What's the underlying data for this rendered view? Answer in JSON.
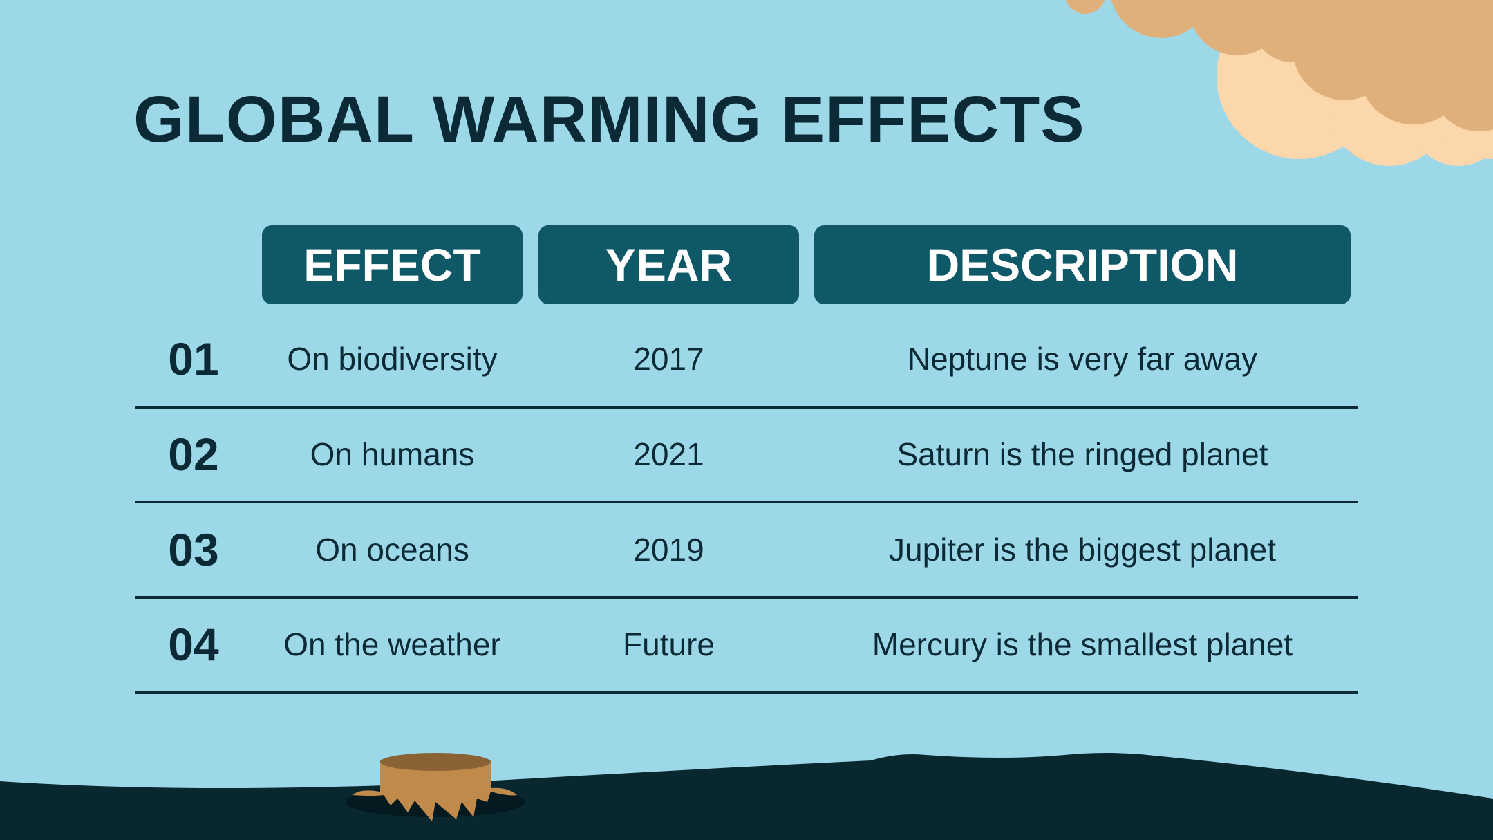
{
  "title": "GLOBAL WARMING EFFECTS",
  "headers": {
    "effect": "EFFECT",
    "year": "YEAR",
    "description": "DESCRIPTION"
  },
  "rows": [
    {
      "num": "01",
      "effect": "On biodiversity",
      "year": "2017",
      "description": "Neptune is very far away"
    },
    {
      "num": "02",
      "effect": "On humans",
      "year": "2021",
      "description": "Saturn is the ringed planet"
    },
    {
      "num": "03",
      "effect": "On oceans",
      "year": "2019",
      "description": "Jupiter is the biggest planet"
    },
    {
      "num": "04",
      "effect": "On the weather",
      "year": "Future",
      "description": "Mercury is the smallest planet"
    }
  ],
  "colors": {
    "background": "#9dd8e8",
    "text_dark": "#0b2a35",
    "header_fill": "#0f5868",
    "cloud_light": "#fbd7ab",
    "cloud_dark": "#e0b07a",
    "ground": "#08272f",
    "stump": "#c08a4a"
  }
}
